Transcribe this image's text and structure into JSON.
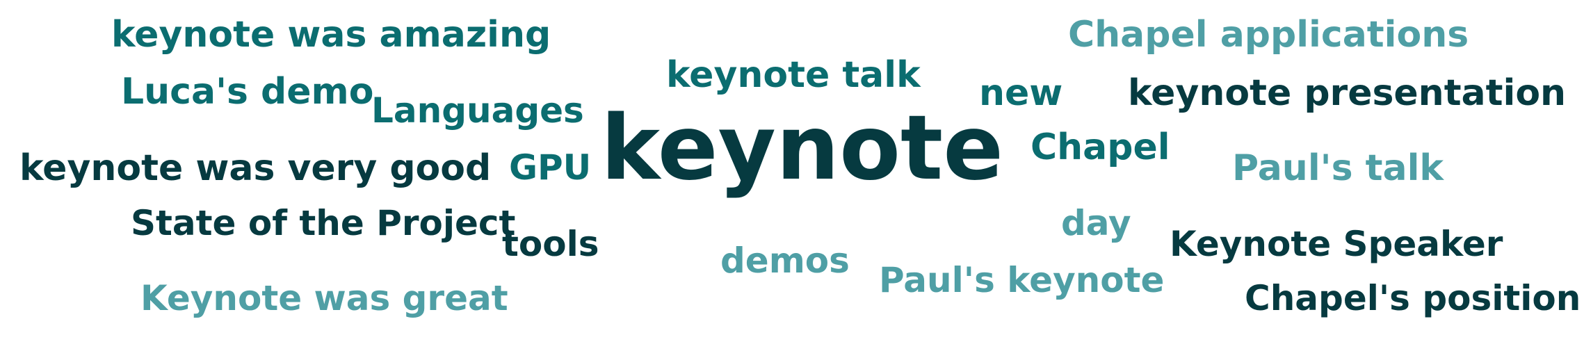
{
  "colors": {
    "dark": "#063a40",
    "mid": "#0b6d70",
    "light": "#4f9fa5",
    "background": "#ffffff"
  },
  "words": [
    {
      "id": "keynote",
      "text": "keynote",
      "tone": "dark"
    },
    {
      "id": "keynote-was-amazing",
      "text": "keynote was amazing",
      "tone": "mid"
    },
    {
      "id": "lucas-demo",
      "text": "Luca's demo",
      "tone": "mid"
    },
    {
      "id": "languages",
      "text": "Languages",
      "tone": "mid"
    },
    {
      "id": "keynote-talk",
      "text": "keynote talk",
      "tone": "mid"
    },
    {
      "id": "new",
      "text": "new",
      "tone": "mid"
    },
    {
      "id": "chapel-applications",
      "text": "Chapel applications",
      "tone": "light"
    },
    {
      "id": "keynote-presentation",
      "text": "keynote presentation",
      "tone": "dark"
    },
    {
      "id": "keynote-was-very-good",
      "text": "keynote was very good",
      "tone": "dark"
    },
    {
      "id": "gpu",
      "text": "GPU",
      "tone": "mid"
    },
    {
      "id": "chapel",
      "text": "Chapel",
      "tone": "mid"
    },
    {
      "id": "pauls-talk",
      "text": "Paul's talk",
      "tone": "light"
    },
    {
      "id": "state-of-the-project",
      "text": "State of the Project",
      "tone": "dark"
    },
    {
      "id": "tools",
      "text": "tools",
      "tone": "dark"
    },
    {
      "id": "day",
      "text": "day",
      "tone": "light"
    },
    {
      "id": "keynote-speaker",
      "text": "Keynote Speaker",
      "tone": "dark"
    },
    {
      "id": "demos",
      "text": "demos",
      "tone": "light"
    },
    {
      "id": "pauls-keynote",
      "text": "Paul's keynote",
      "tone": "light"
    },
    {
      "id": "keynote-was-great",
      "text": "Keynote was great",
      "tone": "light"
    },
    {
      "id": "chapels-position",
      "text": "Chapel's position",
      "tone": "dark"
    }
  ]
}
